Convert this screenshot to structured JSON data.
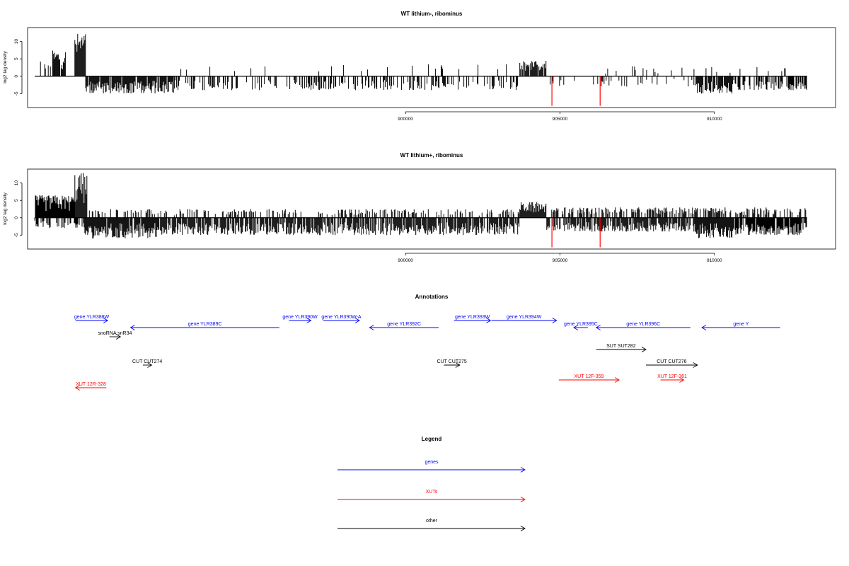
{
  "colors": {
    "gene": "#0000ff",
    "xut": "#ff0000",
    "other": "#000000",
    "bar": "#000000",
    "highlight": "#ff0000"
  },
  "chart_data": [
    {
      "type": "bar",
      "title": "WT lithium-, ribominus",
      "ylabel": "log2 tag density",
      "xlim": [
        887770,
        913920
      ],
      "ylim": [
        -9,
        14
      ],
      "xticks": [
        900000,
        905000,
        910000
      ],
      "yticks": [
        -5,
        0,
        5,
        10
      ],
      "x_range": [
        888000,
        913000
      ],
      "pos_regions": [
        {
          "x": [
            888050,
            888700
          ],
          "y": 4.5,
          "density": 0.3
        },
        {
          "x": [
            888580,
            889000
          ],
          "y": 7.5,
          "density": 0.9
        },
        {
          "x": [
            889300,
            889650
          ],
          "y": 12.5,
          "density": 1
        },
        {
          "x": [
            892500,
            903700
          ],
          "y": 3.5,
          "density": 0.04
        },
        {
          "x": [
            903700,
            904550
          ],
          "y": 4.5,
          "density": 0.9
        },
        {
          "x": [
            906200,
            913000
          ],
          "y": 3,
          "density": 0.06
        }
      ],
      "neg_regions": [
        {
          "x": [
            889650,
            892500
          ],
          "y": -5,
          "density": 0.9
        },
        {
          "x": [
            892500,
            903700
          ],
          "y": -4,
          "density": 0.35
        },
        {
          "x": [
            904550,
            909400
          ],
          "y": -3,
          "density": 0.12
        },
        {
          "x": [
            909400,
            910600
          ],
          "y": -5,
          "density": 0.9
        },
        {
          "x": [
            910600,
            913000
          ],
          "y": -4,
          "density": 0.6
        }
      ],
      "highlight_bars": [
        {
          "x": 904740,
          "y": -8.5
        },
        {
          "x": 906300,
          "y": -8.5
        }
      ]
    },
    {
      "type": "bar",
      "title": "WT lithium+, ribominus",
      "ylabel": "log2 tag density",
      "xlim": [
        887770,
        913920
      ],
      "ylim": [
        -9,
        14
      ],
      "xticks": [
        900000,
        905000,
        910000
      ],
      "yticks": [
        -5,
        0,
        5,
        10
      ],
      "x_range": [
        888000,
        913000
      ],
      "pos_regions": [
        {
          "x": [
            888000,
            889300
          ],
          "y": 6.5,
          "density": 0.95
        },
        {
          "x": [
            889300,
            889700
          ],
          "y": 13,
          "density": 1
        },
        {
          "x": [
            889700,
            903700
          ],
          "y": 2.5,
          "density": 0.3
        },
        {
          "x": [
            903700,
            904550
          ],
          "y": 4.5,
          "density": 1
        },
        {
          "x": [
            904550,
            913000
          ],
          "y": 3,
          "density": 0.5
        }
      ],
      "neg_regions": [
        {
          "x": [
            888000,
            889600
          ],
          "y": -3,
          "density": 0.4
        },
        {
          "x": [
            889600,
            892000
          ],
          "y": -6,
          "density": 0.95
        },
        {
          "x": [
            892000,
            903700
          ],
          "y": -5,
          "density": 0.8
        },
        {
          "x": [
            904550,
            909400
          ],
          "y": -4,
          "density": 0.75
        },
        {
          "x": [
            909400,
            910600
          ],
          "y": -6,
          "density": 1
        },
        {
          "x": [
            910600,
            913000
          ],
          "y": -5,
          "density": 0.9
        }
      ],
      "highlight_bars": [
        {
          "x": 904740,
          "y": -8.5
        },
        {
          "x": 906300,
          "y": -8.5
        }
      ]
    }
  ],
  "annotations": {
    "title": "Annotations",
    "features": [
      {
        "label": "gene YLR388W",
        "start": 888050,
        "end": 888780,
        "strand": "+",
        "type": "gene",
        "row": 0
      },
      {
        "label": "gene YLR389C",
        "start": 889300,
        "end": 892680,
        "strand": "-",
        "type": "gene",
        "row": 1
      },
      {
        "label": "gene YLR390W",
        "start": 892900,
        "end": 893400,
        "strand": "+",
        "type": "gene",
        "row": 0
      },
      {
        "label": "gene YLR390W-A",
        "start": 893680,
        "end": 894500,
        "strand": "+",
        "type": "gene",
        "row": 0
      },
      {
        "label": "gene YLR392C",
        "start": 894730,
        "end": 896300,
        "strand": "-",
        "type": "gene",
        "row": 1
      },
      {
        "label": "gene YLR393W",
        "start": 896650,
        "end": 897480,
        "strand": "+",
        "type": "gene",
        "row": 0
      },
      {
        "label": "gene YLR394W",
        "start": 897500,
        "end": 898980,
        "strand": "+",
        "type": "gene",
        "row": 0
      },
      {
        "label": "gene YLR395C",
        "start": 899370,
        "end": 899690,
        "strand": "-",
        "type": "gene",
        "row": 1
      },
      {
        "label": "gene YLR396C",
        "start": 899880,
        "end": 902020,
        "strand": "-",
        "type": "gene",
        "row": 1
      },
      {
        "label": "gene Y",
        "start": 902280,
        "end": 904060,
        "strand": "-",
        "type": "gene",
        "row": 1
      },
      {
        "label": "snoRNA snR34",
        "start": 888820,
        "end": 889070,
        "strand": "+",
        "type": "other",
        "row": 2
      },
      {
        "label": "SUT SUT282",
        "start": 899880,
        "end": 901010,
        "strand": "+",
        "type": "other",
        "row": 3
      },
      {
        "label": "CUT CUT274",
        "start": 889580,
        "end": 889780,
        "strand": "+",
        "type": "other",
        "row": 4
      },
      {
        "label": "CUT CUT275",
        "start": 896420,
        "end": 896780,
        "strand": "+",
        "type": "other",
        "row": 4
      },
      {
        "label": "CUT CUT276",
        "start": 901010,
        "end": 902180,
        "strand": "+",
        "type": "other",
        "row": 4
      },
      {
        "label": "XUT 12F-359",
        "start": 899030,
        "end": 900400,
        "strand": "+",
        "type": "xut",
        "row": 5
      },
      {
        "label": "XUT 12F-361",
        "start": 901340,
        "end": 901870,
        "strand": "+",
        "type": "xut",
        "row": 5
      },
      {
        "label": "XUT 12R-328",
        "start": 888050,
        "end": 888750,
        "strand": "-",
        "type": "xut",
        "row": 6
      }
    ]
  },
  "legend": {
    "title": "Legend",
    "items": [
      {
        "label": "genes",
        "type": "gene"
      },
      {
        "label": "XUTs",
        "type": "xut"
      },
      {
        "label": "other",
        "type": "other"
      }
    ]
  }
}
